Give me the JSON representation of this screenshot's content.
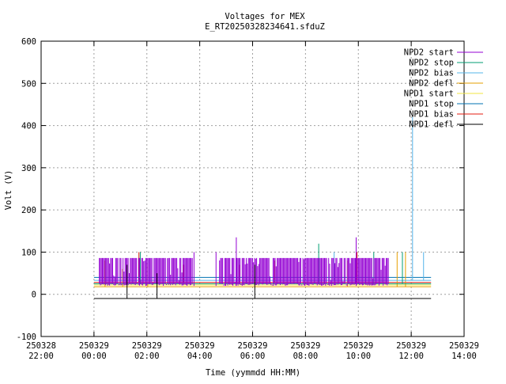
{
  "chart_data": {
    "type": "line",
    "title": "Voltages for MEX",
    "subtitle": "E_RT20250328234641.sfduZ",
    "xlabel": "Time (yymmdd HH:MM)",
    "ylabel": "Volt (V)",
    "xlim": [
      "250328 22:00",
      "250329 14:00"
    ],
    "ylim": [
      -100,
      600
    ],
    "grid": true,
    "legend_position": "top-right",
    "x_ticks": [
      {
        "date": "250328",
        "time": "22:00",
        "hours": -2
      },
      {
        "date": "250329",
        "time": "00:00",
        "hours": 0
      },
      {
        "date": "250329",
        "time": "02:00",
        "hours": 2
      },
      {
        "date": "250329",
        "time": "04:00",
        "hours": 4
      },
      {
        "date": "250329",
        "time": "06:00",
        "hours": 6
      },
      {
        "date": "250329",
        "time": "08:00",
        "hours": 8
      },
      {
        "date": "250329",
        "time": "10:00",
        "hours": 10
      },
      {
        "date": "250329",
        "time": "12:00",
        "hours": 12
      },
      {
        "date": "250329",
        "time": "14:00",
        "hours": 14
      }
    ],
    "y_ticks": [
      -100,
      0,
      100,
      200,
      300,
      400,
      500,
      600
    ],
    "series": [
      {
        "name": "NPD2 start",
        "color": "#9400d3",
        "segments": [
          {
            "start": "250329 00:12",
            "end": "250329 03:43",
            "base": 20,
            "high": 86,
            "dense": true
          },
          {
            "start": "250329 04:45",
            "end": "250329 11:08",
            "base": 20,
            "high": 86,
            "dense": true
          }
        ],
        "spikes": [
          {
            "x": "250329 03:47",
            "y": 100
          },
          {
            "x": "250329 04:37",
            "y": 100
          },
          {
            "x": "250329 05:23",
            "y": 135
          },
          {
            "x": "250329 09:55",
            "y": 135
          }
        ]
      },
      {
        "name": "NPD2 stop",
        "color": "#009e73",
        "level": 25,
        "range": [
          "250329 00:00",
          "250329 12:45"
        ],
        "spikes": [
          {
            "x": "250329 01:45",
            "y": 100
          },
          {
            "x": "250329 08:30",
            "y": 120
          },
          {
            "x": "250329 10:35",
            "y": 100
          },
          {
            "x": "250329 11:40",
            "y": 100
          }
        ]
      },
      {
        "name": "NPD2 bias",
        "color": "#56b4e9",
        "level": 33,
        "range": [
          "250329 00:00",
          "250329 12:45"
        ],
        "spikes": [
          {
            "x": "250329 12:03",
            "y": 420
          },
          {
            "x": "250329 12:28",
            "y": 100
          },
          {
            "x": "250329 09:05",
            "y": 100
          }
        ]
      },
      {
        "name": "NPD2 defl",
        "color": "#e69f00",
        "level": 18,
        "range": [
          "250329 00:00",
          "250329 12:45"
        ],
        "spikes": [
          {
            "x": "250329 00:25",
            "y": 80
          },
          {
            "x": "250329 01:05",
            "y": 60
          },
          {
            "x": "250329 02:02",
            "y": 70
          },
          {
            "x": "250329 09:35",
            "y": 80
          },
          {
            "x": "250329 11:28",
            "y": 100
          },
          {
            "x": "250329 11:47",
            "y": 100
          }
        ]
      },
      {
        "name": "NPD1 start",
        "color": "#f0e442",
        "level": 22,
        "range": [
          "250329 00:00",
          "250329 12:45"
        ],
        "spikes": []
      },
      {
        "name": "NPD1 stop",
        "color": "#0072b2",
        "level": 40,
        "range": [
          "250329 00:00",
          "250329 12:45"
        ],
        "spikes": []
      },
      {
        "name": "NPD1 bias",
        "color": "#e51e10",
        "level": 28,
        "range": [
          "250329 00:00",
          "250329 12:45"
        ],
        "spikes": [
          {
            "x": "250329 01:42",
            "y": 100
          },
          {
            "x": "250329 03:23",
            "y": 70
          },
          {
            "x": "250329 05:30",
            "y": 70
          },
          {
            "x": "250329 06:50",
            "y": 80
          },
          {
            "x": "250329 09:57",
            "y": 100
          }
        ]
      },
      {
        "name": "NPD1 defl",
        "color": "#000000",
        "level": -10,
        "range": [
          "250329 00:00",
          "250329 12:45"
        ],
        "spikes": [
          {
            "x": "250329 01:15",
            "y": 70
          },
          {
            "x": "250329 02:23",
            "y": 50
          },
          {
            "x": "250329 06:05",
            "y": 70
          }
        ],
        "dips": [
          {
            "x": "250329 01:15",
            "y": -10
          },
          {
            "x": "250329 01:40",
            "y": -10
          },
          {
            "x": "250329 06:05",
            "y": -10
          }
        ]
      }
    ]
  }
}
